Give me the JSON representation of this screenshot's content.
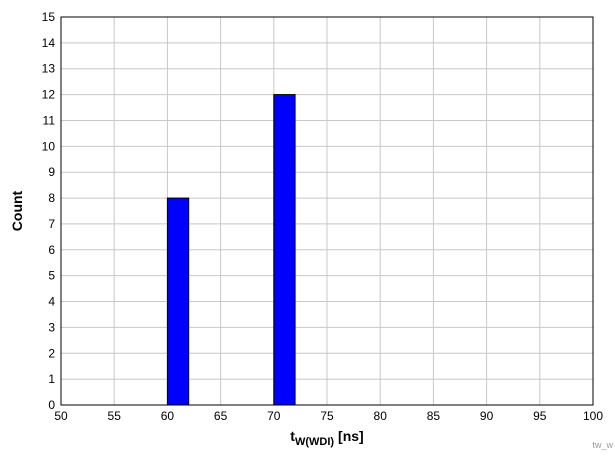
{
  "chart_data": {
    "type": "bar",
    "x": [
      61,
      71
    ],
    "values": [
      8,
      12
    ],
    "bar_width": 2,
    "xlabel_main": "t",
    "xlabel_sub": "W(WDI)",
    "xlabel_unit": "[ns]",
    "ylabel": "Count",
    "xlim": [
      50,
      100
    ],
    "ylim": [
      0,
      15
    ],
    "xticks": [
      50,
      55,
      60,
      65,
      70,
      75,
      80,
      85,
      90,
      95,
      100
    ],
    "yticks": [
      0,
      1,
      2,
      3,
      4,
      5,
      6,
      7,
      8,
      9,
      10,
      11,
      12,
      13,
      14,
      15
    ],
    "grid": true,
    "bar_color": "#0000FF",
    "grid_color": "#C8C8C8",
    "watermark": "tw_w"
  }
}
